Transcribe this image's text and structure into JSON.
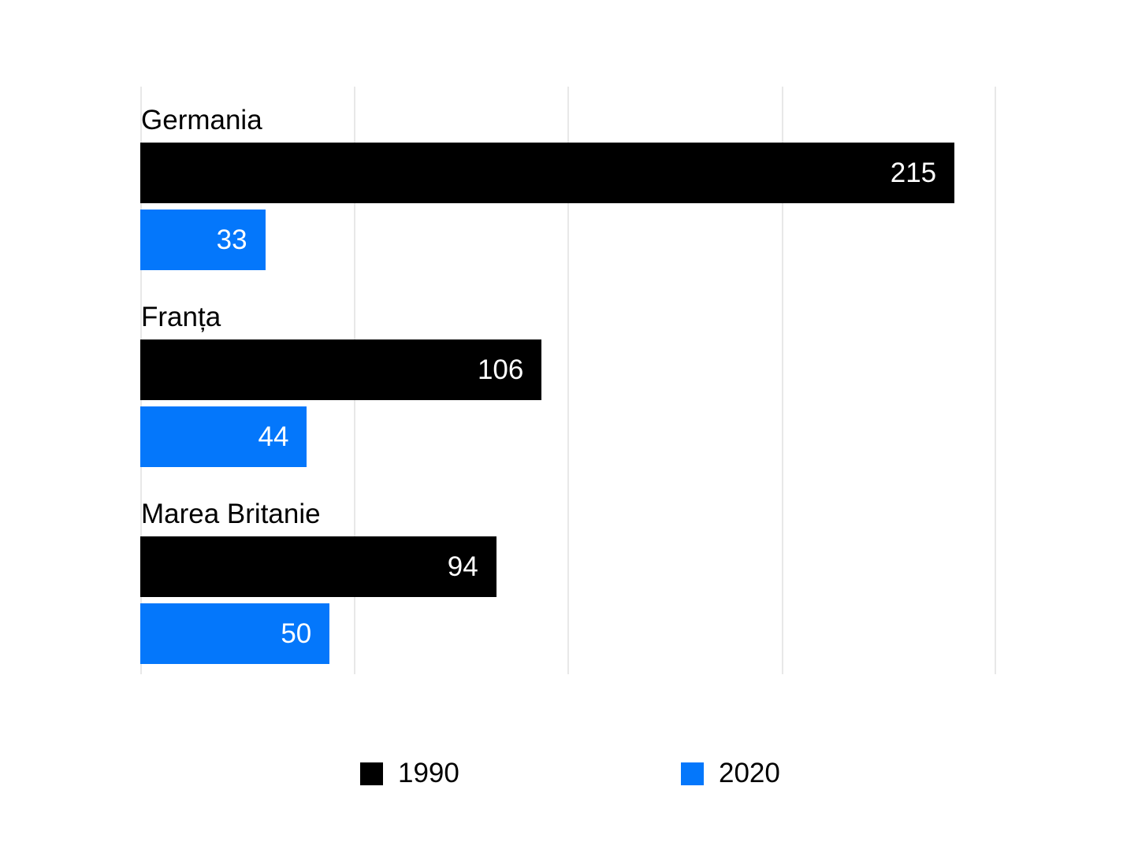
{
  "chart_data": {
    "type": "bar",
    "orientation": "horizontal",
    "categories": [
      "Germania",
      "Franța",
      "Marea Britanie"
    ],
    "series": [
      {
        "name": "1990",
        "color": "#000000",
        "values": [
          215,
          106,
          94
        ]
      },
      {
        "name": "2020",
        "color": "#0477fb",
        "values": [
          33,
          44,
          50
        ]
      }
    ],
    "xlim": [
      0,
      226
    ],
    "grid": "vertical-gridlines-unlabeled",
    "legend_position": "bottom",
    "value_label_position": "inside-end"
  },
  "legend": {
    "items": [
      {
        "label": "1990",
        "color": "#000000"
      },
      {
        "label": "2020",
        "color": "#0477fb"
      }
    ]
  },
  "colors": {
    "background": "#ffffff",
    "gridline": "#e8e8e8",
    "value_label_text": "#ffffff",
    "category_label_text": "#000000"
  }
}
